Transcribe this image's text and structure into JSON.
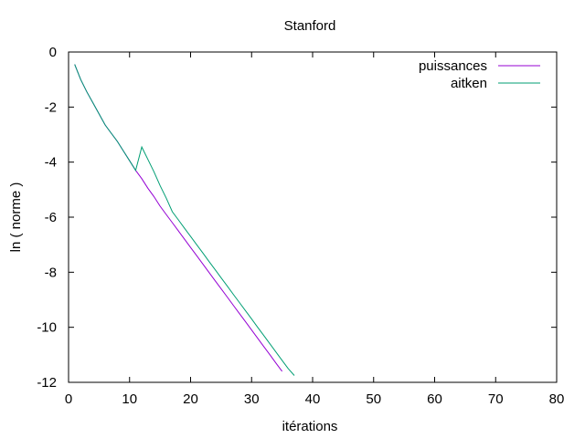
{
  "chart_data": {
    "type": "line",
    "title": "Stanford",
    "xlabel": "itérations",
    "ylabel": "ln ( norme )",
    "xlim": [
      0,
      80
    ],
    "ylim": [
      -12,
      0
    ],
    "x_ticks": [
      0,
      10,
      20,
      30,
      40,
      50,
      60,
      70,
      80
    ],
    "y_ticks": [
      0,
      -2,
      -4,
      -6,
      -8,
      -10,
      -12
    ],
    "grid": false,
    "legend_position": "top-right",
    "series": [
      {
        "name": "puissances",
        "color": "#9400d3",
        "points": [
          [
            1,
            -0.45
          ],
          [
            2,
            -1.0
          ],
          [
            3,
            -1.45
          ],
          [
            4,
            -1.85
          ],
          [
            5,
            -2.25
          ],
          [
            6,
            -2.65
          ],
          [
            7,
            -2.95
          ],
          [
            8,
            -3.25
          ],
          [
            9,
            -3.6
          ],
          [
            10,
            -3.95
          ],
          [
            11,
            -4.3
          ],
          [
            12,
            -4.6
          ],
          [
            13,
            -4.95
          ],
          [
            14,
            -5.25
          ],
          [
            15,
            -5.6
          ],
          [
            16,
            -5.9
          ],
          [
            17,
            -6.2
          ],
          [
            18,
            -6.5
          ],
          [
            19,
            -6.8
          ],
          [
            20,
            -7.1
          ],
          [
            21,
            -7.4
          ],
          [
            22,
            -7.7
          ],
          [
            23,
            -8.0
          ],
          [
            24,
            -8.3
          ],
          [
            25,
            -8.6
          ],
          [
            26,
            -8.9
          ],
          [
            27,
            -9.2
          ],
          [
            28,
            -9.5
          ],
          [
            29,
            -9.8
          ],
          [
            30,
            -10.1
          ],
          [
            31,
            -10.4
          ],
          [
            32,
            -10.7
          ],
          [
            33,
            -11.0
          ],
          [
            34,
            -11.3
          ],
          [
            35,
            -11.6
          ]
        ]
      },
      {
        "name": "aitken",
        "color": "#009e73",
        "points": [
          [
            1,
            -0.45
          ],
          [
            2,
            -1.0
          ],
          [
            3,
            -1.45
          ],
          [
            4,
            -1.85
          ],
          [
            5,
            -2.25
          ],
          [
            6,
            -2.65
          ],
          [
            7,
            -2.95
          ],
          [
            8,
            -3.25
          ],
          [
            9,
            -3.6
          ],
          [
            10,
            -3.95
          ],
          [
            11,
            -4.3
          ],
          [
            12,
            -3.45
          ],
          [
            13,
            -3.9
          ],
          [
            14,
            -4.35
          ],
          [
            15,
            -4.85
          ],
          [
            16,
            -5.3
          ],
          [
            17,
            -5.8
          ],
          [
            18,
            -6.1
          ],
          [
            19,
            -6.4
          ],
          [
            20,
            -6.7
          ],
          [
            21,
            -7.0
          ],
          [
            22,
            -7.3
          ],
          [
            23,
            -7.6
          ],
          [
            24,
            -7.9
          ],
          [
            25,
            -8.2
          ],
          [
            26,
            -8.5
          ],
          [
            27,
            -8.8
          ],
          [
            28,
            -9.1
          ],
          [
            29,
            -9.4
          ],
          [
            30,
            -9.7
          ],
          [
            31,
            -10.0
          ],
          [
            32,
            -10.3
          ],
          [
            33,
            -10.6
          ],
          [
            34,
            -10.9
          ],
          [
            35,
            -11.2
          ],
          [
            36,
            -11.5
          ],
          [
            37,
            -11.75
          ]
        ]
      }
    ]
  }
}
